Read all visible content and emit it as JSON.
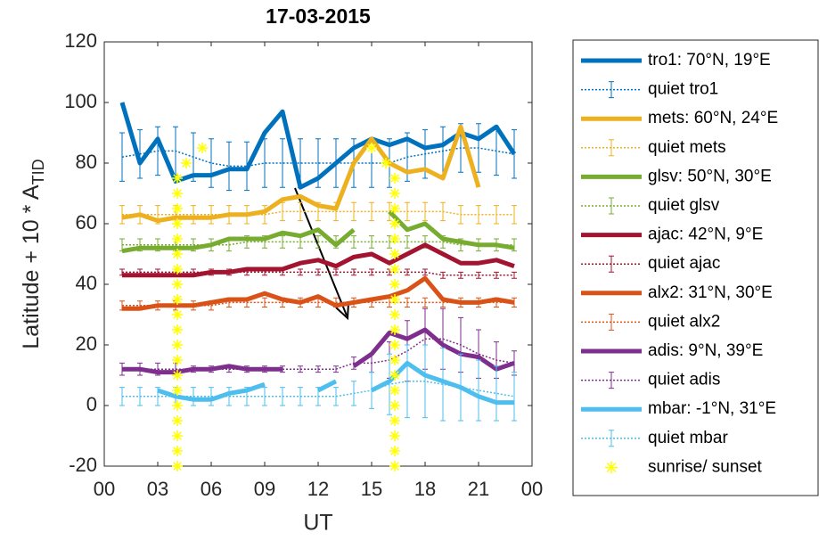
{
  "chart_data": {
    "type": "line",
    "title": "17-03-2015",
    "xlabel": "UT",
    "ylabel": "Latitude + 10 * A",
    "ylabel_sub": "TID",
    "xlim": [
      0,
      24
    ],
    "xticks": [
      {
        "value": 0,
        "label": "00"
      },
      {
        "value": 3,
        "label": "03"
      },
      {
        "value": 6,
        "label": "06"
      },
      {
        "value": 9,
        "label": "09"
      },
      12,
      15,
      18,
      21,
      {
        "value": 24,
        "label": "00"
      }
    ],
    "ylim": [
      -20,
      120
    ],
    "yticks": [
      -20,
      0,
      20,
      40,
      60,
      80,
      100,
      120
    ],
    "legend": "outside-right",
    "x": [
      1,
      2,
      3,
      4,
      5,
      6,
      7,
      8,
      9,
      10,
      11,
      12,
      13,
      14,
      15,
      16,
      17,
      18,
      19,
      20,
      21,
      22,
      23
    ],
    "series": [
      {
        "name": "tro1: 70°N, 19°E",
        "style": "solid",
        "color": "#0072bd",
        "values": [
          100,
          80,
          88,
          74,
          76,
          76,
          78,
          78,
          90,
          97,
          72,
          75,
          80,
          85,
          88,
          86,
          88,
          85,
          86,
          90,
          88,
          92,
          83
        ]
      },
      {
        "name": "quiet tro1",
        "style": "dotted",
        "color": "#0072bd",
        "values": [
          82,
          83,
          84,
          84,
          82,
          80,
          79,
          79,
          80,
          80,
          80,
          80,
          80,
          80,
          80,
          80,
          82,
          83,
          84,
          85,
          85,
          84,
          83
        ],
        "errors": [
          8,
          8,
          8,
          8,
          8,
          8,
          8,
          8,
          8,
          8,
          8,
          8,
          8,
          8,
          8,
          8,
          8,
          8,
          8,
          8,
          8,
          8,
          8
        ]
      },
      {
        "name": "mets: 60°N, 24°E",
        "style": "solid",
        "color": "#edb120",
        "values": [
          62,
          63,
          61,
          62,
          62,
          62,
          63,
          63,
          64,
          68,
          69,
          66,
          65,
          80,
          88,
          80,
          77,
          78,
          75,
          92,
          72,
          null,
          null
        ]
      },
      {
        "name": "quiet mets",
        "style": "dotted",
        "color": "#edb120",
        "values": [
          63,
          63,
          63,
          63,
          63,
          63,
          63,
          63,
          63,
          64,
          64,
          64,
          64,
          64,
          64,
          64,
          64,
          64,
          64,
          63,
          63,
          63,
          63
        ],
        "errors": [
          3,
          3,
          3,
          3,
          3,
          3,
          3,
          3,
          3,
          3,
          3,
          3,
          3,
          3,
          3,
          3,
          3,
          3,
          3,
          3,
          3,
          3,
          3
        ]
      },
      {
        "name": "glsv: 50°N, 30°E",
        "style": "solid",
        "color": "#77ac30",
        "values": [
          51,
          52,
          52,
          52,
          52,
          53,
          55,
          55,
          55,
          57,
          56,
          58,
          53,
          58,
          null,
          64,
          58,
          60,
          55,
          54,
          53,
          53,
          52
        ]
      },
      {
        "name": "quiet glsv",
        "style": "dotted",
        "color": "#77ac30",
        "values": [
          53,
          53,
          53,
          53,
          53,
          53,
          53,
          54,
          54,
          54,
          54,
          54,
          54,
          54,
          54,
          54,
          54,
          54,
          54,
          53,
          53,
          53,
          53
        ],
        "errors": [
          2,
          2,
          2,
          2,
          2,
          2,
          2,
          2,
          2,
          2,
          2,
          2,
          2,
          2,
          2,
          2,
          2,
          2,
          2,
          2,
          2,
          2,
          2
        ]
      },
      {
        "name": "ajac: 42°N, 9°E",
        "style": "solid",
        "color": "#a2142f",
        "values": [
          43,
          43,
          43,
          43,
          43,
          44,
          44,
          45,
          45,
          45,
          47,
          48,
          46,
          49,
          50,
          47,
          50,
          53,
          50,
          47,
          47,
          48,
          46
        ]
      },
      {
        "name": "quiet ajac",
        "style": "dotted",
        "color": "#a2142f",
        "values": [
          44,
          44,
          44,
          44,
          44,
          44,
          44,
          44,
          44,
          44,
          44,
          44,
          44,
          44,
          44,
          44,
          44,
          44,
          43,
          43,
          43,
          43,
          43
        ],
        "errors": [
          1,
          1,
          1,
          1,
          1,
          1,
          1,
          1,
          1,
          1,
          1,
          1,
          1,
          1,
          1,
          1,
          1,
          1,
          1,
          1,
          1,
          1,
          1
        ]
      },
      {
        "name": "alx2: 31°N, 30°E",
        "style": "solid",
        "color": "#d95319",
        "values": [
          32,
          32,
          33,
          33,
          33,
          34,
          35,
          35,
          37,
          35,
          34,
          36,
          33,
          34,
          35,
          36,
          38,
          42,
          35,
          34,
          34,
          35,
          34
        ]
      },
      {
        "name": "quiet alx2",
        "style": "dotted",
        "color": "#d95319",
        "values": [
          33,
          33,
          33,
          33,
          33,
          33,
          34,
          34,
          34,
          34,
          34,
          34,
          34,
          34,
          34,
          34,
          34,
          34,
          34,
          34,
          34,
          34,
          34
        ],
        "errors": [
          1.5,
          1.5,
          1.5,
          1.5,
          1.5,
          1.5,
          1.5,
          1.5,
          1.5,
          1.5,
          1.5,
          1.5,
          1.5,
          1.5,
          1.5,
          1.5,
          1.5,
          1.5,
          1.5,
          1.5,
          1.5,
          1.5,
          1.5
        ]
      },
      {
        "name": "adis: 9°N, 39°E",
        "style": "solid",
        "color": "#7e2f8e",
        "values": [
          12,
          12,
          11,
          11,
          12,
          12,
          13,
          12,
          12,
          12,
          null,
          18,
          null,
          13,
          17,
          24,
          22,
          25,
          20,
          17,
          16,
          12,
          14
        ]
      },
      {
        "name": "quiet adis",
        "style": "dotted",
        "color": "#7e2f8e",
        "values": [
          12,
          12,
          12,
          12,
          12,
          12,
          12,
          12,
          12,
          12,
          12,
          12,
          12,
          14,
          14,
          15,
          18,
          22,
          22,
          20,
          17,
          15,
          14
        ],
        "errors": [
          2,
          2,
          2,
          2,
          1,
          1,
          1,
          1,
          1,
          1,
          1,
          1,
          1,
          2,
          3,
          6,
          10,
          10,
          10,
          9,
          8,
          6,
          4
        ]
      },
      {
        "name": "mbar: -1°N, 31°E",
        "style": "solid",
        "color": "#4dbeee",
        "values": [
          null,
          null,
          5,
          3,
          2,
          2,
          4,
          5,
          7,
          null,
          null,
          5,
          8,
          null,
          5,
          8,
          14,
          10,
          8,
          6,
          3,
          1,
          1
        ]
      },
      {
        "name": "quiet mbar",
        "style": "dotted",
        "color": "#4dbeee",
        "values": [
          3,
          3,
          3,
          3,
          3,
          3,
          3,
          3,
          3,
          3,
          3,
          3,
          3,
          4,
          5,
          7,
          8,
          8,
          7,
          6,
          5,
          4,
          3
        ],
        "errors": [
          3,
          3,
          3,
          3,
          3,
          3,
          3,
          3,
          3,
          3,
          3,
          3,
          3,
          4,
          6,
          10,
          12,
          12,
          12,
          11,
          10,
          9,
          8
        ]
      },
      {
        "name": "sunrise/ sunset",
        "style": "asterisk",
        "color": "#ffff00",
        "x": [
          4.1,
          4.1,
          4.1,
          4.1,
          4.1,
          4.1,
          4.1,
          4.1,
          4.1,
          4.1,
          4.1,
          4.1,
          4.1,
          4.1,
          4.1,
          4.1,
          4.1,
          4.1,
          4.1,
          4.1,
          4.6,
          5.5,
          16.3,
          16.3,
          16.3,
          16.3,
          16.3,
          16.3,
          16.3,
          16.3,
          16.3,
          16.3,
          16.3,
          16.3,
          16.3,
          16.3,
          16.3,
          16.3,
          16.3,
          16.3,
          16.3,
          16.3,
          15.0,
          15.8
        ],
        "values": [
          -20,
          -15,
          -10,
          -5,
          0,
          5,
          10,
          15,
          20,
          25,
          30,
          35,
          40,
          45,
          50,
          55,
          60,
          65,
          70,
          75,
          80,
          85,
          -20,
          -15,
          -10,
          -5,
          0,
          5,
          10,
          15,
          20,
          25,
          30,
          35,
          40,
          45,
          50,
          55,
          60,
          65,
          70,
          75,
          85,
          80
        ]
      }
    ]
  }
}
